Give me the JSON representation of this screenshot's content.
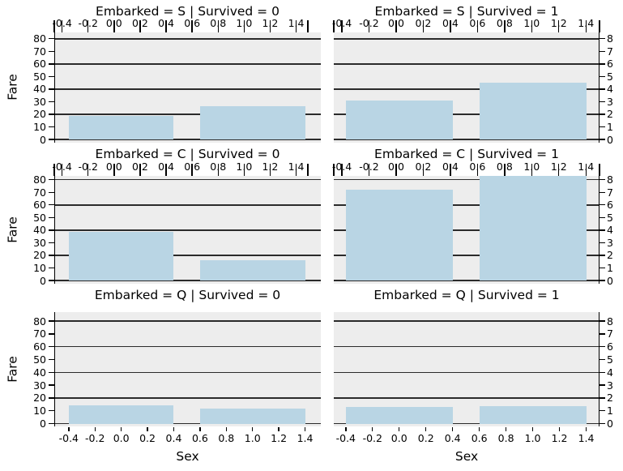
{
  "chart_data": {
    "type": "bar",
    "description": "3x2 facet grid of bar charts: mean Fare by Sex, faceted by Embarked (S, C, Q) and Survived (0, 1)",
    "facets": [
      {
        "row": 0,
        "col": 0,
        "title": "Embarked = S | Survived = 0",
        "values": [
          19,
          26.5
        ]
      },
      {
        "row": 0,
        "col": 1,
        "title": "Embarked = S | Survived = 1",
        "values": [
          31,
          45
        ]
      },
      {
        "row": 1,
        "col": 0,
        "title": "Embarked = C | Survived = 0",
        "values": [
          38.5,
          16
        ]
      },
      {
        "row": 1,
        "col": 1,
        "title": "Embarked = C | Survived = 1",
        "values": [
          72,
          84
        ]
      },
      {
        "row": 2,
        "col": 0,
        "title": "Embarked = Q | Survived = 0",
        "values": [
          14,
          11.5
        ]
      },
      {
        "row": 2,
        "col": 1,
        "title": "Embarked = Q | Survived = 1",
        "values": [
          13,
          13.5
        ]
      }
    ],
    "x_categories": [
      0,
      1
    ],
    "bar_edges": [
      [
        -0.4,
        0.4
      ],
      [
        0.6,
        1.4
      ]
    ],
    "xlabel": "Sex",
    "ylabel": "Fare",
    "xtick_values": [
      -0.4,
      -0.2,
      0.0,
      0.2,
      0.4,
      0.6,
      0.8,
      1.0,
      1.2,
      1.4
    ],
    "xtick_labels": [
      "-0.4",
      "-0.2",
      "0.0",
      "0.2",
      "0.4",
      "0.6",
      "0.8",
      "1.0",
      "1.2",
      "1.4"
    ],
    "left_ytick_values": [
      0,
      10,
      20,
      30,
      40,
      50,
      60,
      70,
      80
    ],
    "left_ytick_labels": [
      "0",
      "10",
      "20",
      "30",
      "40",
      "50",
      "60",
      "70",
      "80"
    ],
    "right_ytick_values": [
      0,
      10,
      20,
      30,
      40,
      50,
      60,
      70,
      80
    ],
    "right_ytick_labels": [
      "0",
      "1",
      "2",
      "3",
      "4",
      "5",
      "6",
      "7",
      "8"
    ],
    "gridline_values": [
      0,
      20,
      40,
      60,
      80
    ],
    "ylim_per_row": [
      [
        0,
        85
      ],
      [
        0,
        83
      ],
      [
        0,
        87
      ]
    ],
    "grid": true,
    "legend": false,
    "colors": {
      "bar_fill": "#b9d5e4",
      "plot_background": "#ededed",
      "gridline": "#2b2b2b",
      "axis": "#000000",
      "text": "#000000",
      "page_background": "#ffffff"
    }
  }
}
